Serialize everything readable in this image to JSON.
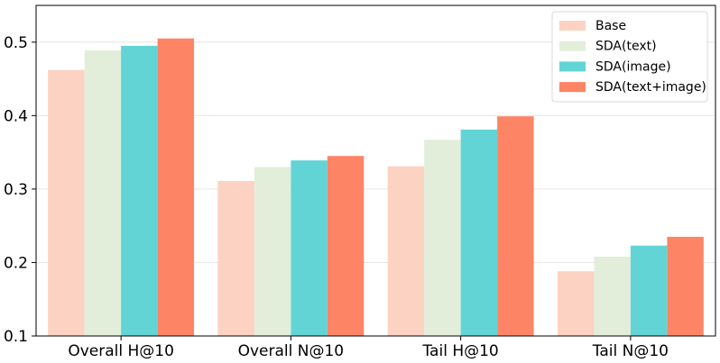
{
  "chart_data": {
    "type": "bar",
    "title": "",
    "xlabel": "",
    "ylabel": "",
    "categories": [
      "Overall H@10",
      "Overall N@10",
      "Tail H@10",
      "Tail N@10"
    ],
    "series": [
      {
        "name": "Base",
        "color": "#FCD2C3",
        "values": [
          0.462,
          0.311,
          0.331,
          0.188
        ]
      },
      {
        "name": "SDA(text)",
        "color": "#E2EEDA",
        "values": [
          0.489,
          0.33,
          0.367,
          0.208
        ]
      },
      {
        "name": "SDA(image)",
        "color": "#62D4D6",
        "values": [
          0.495,
          0.339,
          0.381,
          0.223
        ]
      },
      {
        "name": "SDA(text+image)",
        "color": "#FD8566",
        "values": [
          0.505,
          0.345,
          0.399,
          0.235
        ]
      }
    ],
    "ylim": [
      0.1,
      0.55
    ],
    "yticks": [
      "0.1",
      "0.2",
      "0.3",
      "0.4",
      "0.5"
    ],
    "grid": true,
    "legend_position": "top-right"
  }
}
